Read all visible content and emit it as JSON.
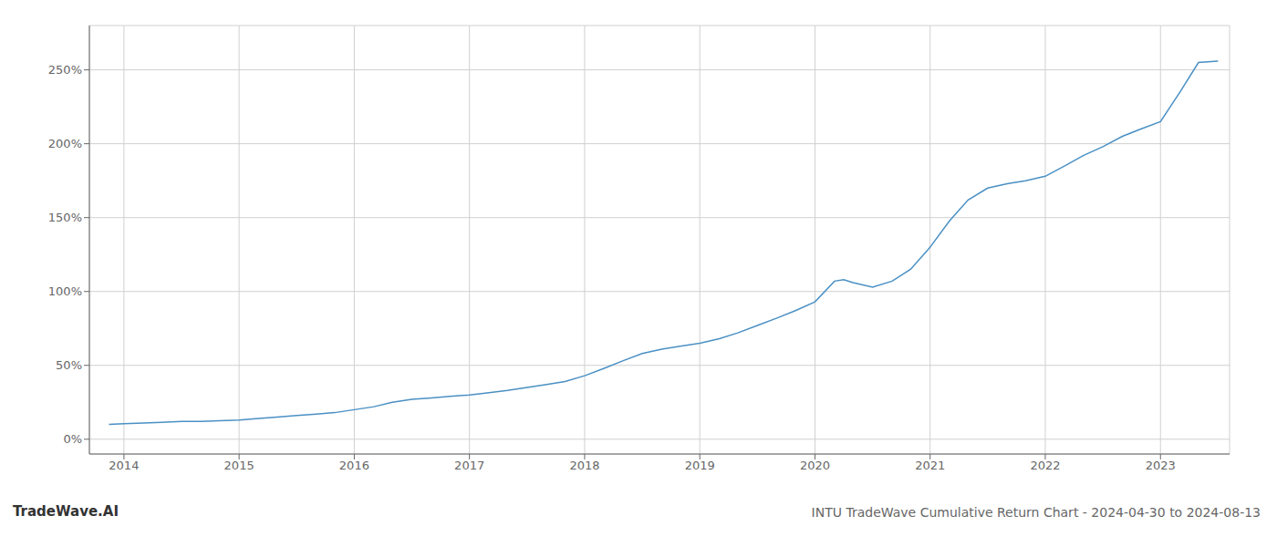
{
  "chart_data": {
    "type": "line",
    "title": "INTU TradeWave Cumulative Return Chart - 2024-04-30 to 2024-08-13",
    "annotations": [
      "TradeWave.AI"
    ],
    "color": "#4a90c4",
    "grid": true,
    "x": [
      2013.87,
      2014.0,
      2014.17,
      2014.33,
      2014.5,
      2014.67,
      2014.83,
      2015.0,
      2015.17,
      2015.33,
      2015.5,
      2015.67,
      2015.83,
      2016.0,
      2016.17,
      2016.33,
      2016.5,
      2016.67,
      2016.83,
      2017.0,
      2017.17,
      2017.33,
      2017.5,
      2017.67,
      2017.83,
      2018.0,
      2018.17,
      2018.33,
      2018.5,
      2018.67,
      2018.83,
      2019.0,
      2019.17,
      2019.33,
      2019.5,
      2019.67,
      2019.83,
      2020.0,
      2020.17,
      2020.25,
      2020.33,
      2020.5,
      2020.67,
      2020.83,
      2021.0,
      2021.17,
      2021.33,
      2021.5,
      2021.67,
      2021.83,
      2022.0,
      2022.17,
      2022.33,
      2022.5,
      2022.67,
      2022.83,
      2023.0,
      2023.17,
      2023.33,
      2023.5
    ],
    "values": [
      10,
      10.5,
      11,
      11.5,
      12,
      12,
      12.5,
      13,
      14,
      15,
      16,
      17,
      18,
      20,
      22,
      25,
      27,
      28,
      29,
      30,
      31.5,
      33,
      35,
      37,
      39,
      43,
      48,
      53,
      58,
      61,
      63,
      65,
      68,
      72,
      77,
      82,
      87,
      93,
      107,
      108,
      106,
      103,
      107,
      115,
      130,
      148,
      162,
      170,
      173,
      175,
      178,
      185,
      192,
      198,
      205,
      210,
      215,
      235,
      255,
      256
    ],
    "xlim": [
      2013.7,
      2023.6
    ],
    "xticks": [
      2014,
      2015,
      2016,
      2017,
      2018,
      2019,
      2020,
      2021,
      2022,
      2023
    ],
    "ylim": [
      -10,
      280
    ],
    "yticks": [
      {
        "value": 0,
        "label": "0%"
      },
      {
        "value": 50,
        "label": "50%"
      },
      {
        "value": 100,
        "label": "100%"
      },
      {
        "value": 150,
        "label": "150%"
      },
      {
        "value": 200,
        "label": "200%"
      },
      {
        "value": 250,
        "label": "250%"
      }
    ]
  }
}
